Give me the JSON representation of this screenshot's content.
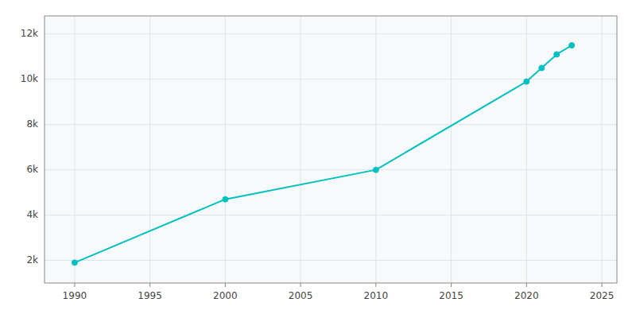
{
  "chart_data": {
    "type": "line",
    "x": [
      1990,
      2000,
      2010,
      2020,
      2021,
      2022,
      2023
    ],
    "values": [
      1900,
      4700,
      6000,
      9900,
      10500,
      11100,
      11500
    ],
    "color": "#00C0C0",
    "marker": "circle",
    "xlim": [
      1988,
      2026
    ],
    "ylim": [
      1000,
      12800
    ],
    "xticks": [
      1990,
      1995,
      2000,
      2005,
      2010,
      2015,
      2020,
      2025
    ],
    "yticks": [
      {
        "value": 2000,
        "label": "2k"
      },
      {
        "value": 4000,
        "label": "4k"
      },
      {
        "value": 6000,
        "label": "6k"
      },
      {
        "value": 8000,
        "label": "8k"
      },
      {
        "value": 10000,
        "label": "10k"
      },
      {
        "value": 12000,
        "label": "12k"
      }
    ],
    "grid": true
  }
}
